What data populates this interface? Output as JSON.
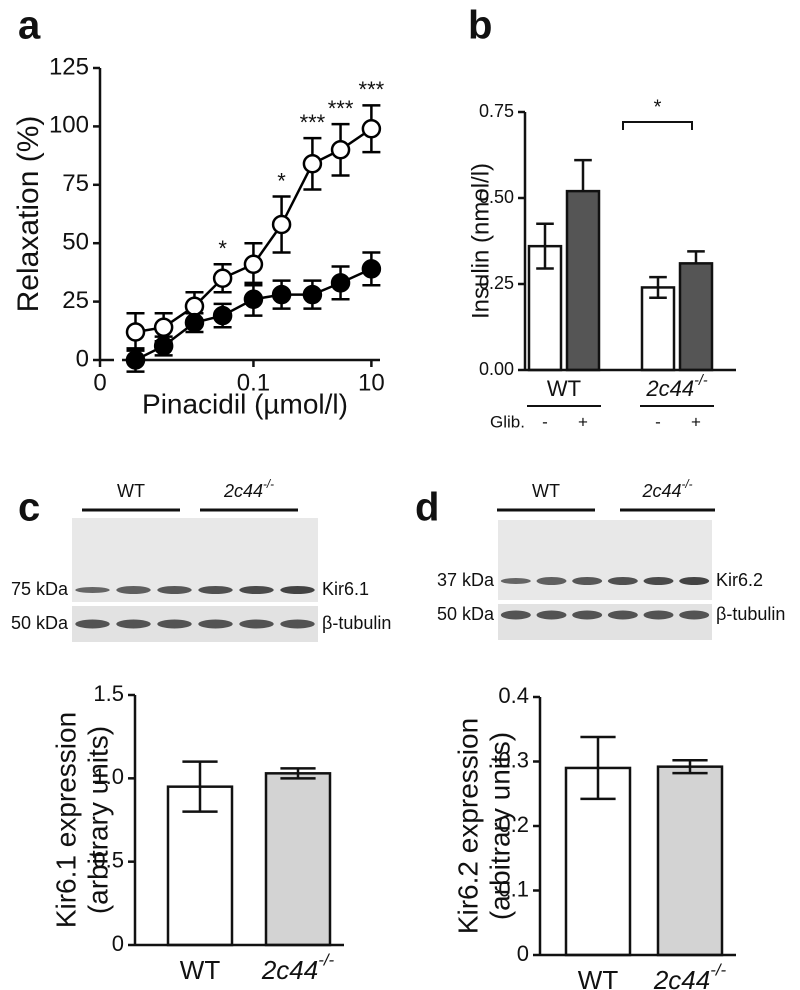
{
  "chart_data": [
    {
      "type": "line",
      "panel": "a",
      "xlabel": "Pinacidil (µmol/l)",
      "ylabel": "Relaxation (%)",
      "xlog": true,
      "x": [
        0.001,
        0.003,
        0.01,
        0.03,
        0.1,
        0.3,
        1,
        3,
        10
      ],
      "x_zero_label": "0",
      "xlim": [
        0.00025,
        14
      ],
      "xticks": [
        0.1,
        10
      ],
      "ylim": [
        0,
        125
      ],
      "yticks": [
        0,
        25,
        50,
        75,
        100,
        125
      ],
      "series": [
        {
          "marker": "open",
          "color": "#000000",
          "values": [
            12,
            14,
            23,
            35,
            41,
            58,
            84,
            90,
            99
          ],
          "errors": [
            8,
            6,
            6,
            6,
            9,
            12,
            11,
            11,
            10
          ]
        },
        {
          "marker": "filled",
          "color": "#000000",
          "values": [
            0,
            6,
            16,
            19,
            26,
            28,
            28,
            33,
            39
          ],
          "errors": [
            5,
            4,
            4,
            5,
            7,
            6,
            6,
            7,
            7
          ]
        }
      ],
      "annotations": [
        {
          "x": 0.03,
          "text": "*"
        },
        {
          "x": 0.3,
          "text": "*"
        },
        {
          "x": 1,
          "text": "***"
        },
        {
          "x": 3,
          "text": "***"
        },
        {
          "x": 10,
          "text": "***"
        }
      ]
    },
    {
      "type": "bar",
      "panel": "b",
      "ylabel": "Insulin (nmol/l)",
      "groups": [
        {
          "text": "WT"
        },
        {
          "text": "2c44",
          "sup": "-/-"
        }
      ],
      "condition_label": "Glib.",
      "categories": [
        "-",
        "+",
        "-",
        "+"
      ],
      "values": [
        0.36,
        0.52,
        0.24,
        0.31
      ],
      "errors": [
        0.065,
        0.09,
        0.03,
        0.035
      ],
      "colors": [
        "#ffffff",
        "#555555",
        "#ffffff",
        "#555555"
      ],
      "ylim": [
        0,
        0.75
      ],
      "yticks": [
        {
          "value": 0,
          "label": "0.00"
        },
        {
          "value": 0.25,
          "label": "0.25"
        },
        {
          "value": 0.5,
          "label": "0.50"
        },
        {
          "value": 0.75,
          "label": "0.75"
        }
      ],
      "significance": {
        "text": "*",
        "between": [
          1,
          3
        ]
      }
    },
    {
      "type": "bar",
      "panel": "c",
      "ylabel": [
        "Kir6.1 expression",
        "(arbitrary units)"
      ],
      "categories": [
        {
          "text": "WT"
        },
        {
          "text": "2c44",
          "sup": "-/-"
        }
      ],
      "values": [
        0.95,
        1.03
      ],
      "errors": [
        0.15,
        0.03
      ],
      "colors": [
        "#ffffff",
        "#d3d3d3"
      ],
      "ylim": [
        0,
        1.5
      ],
      "yticks": [
        0,
        0.5,
        {
          "value": 1,
          "label": "1.0"
        },
        1.5
      ],
      "blot": {
        "groups": [
          {
            "text": "WT"
          },
          {
            "text": "2c44",
            "sup": "-/-"
          }
        ],
        "rows": [
          {
            "marker": "75 kDa",
            "protein": "Kir6.1"
          },
          {
            "marker": "50 kDa",
            "protein": "β-tubulin"
          }
        ]
      }
    },
    {
      "type": "bar",
      "panel": "d",
      "ylabel": [
        "Kir6.2 expression",
        "(arbitrary units)"
      ],
      "categories": [
        {
          "text": "WT"
        },
        {
          "text": "2c44",
          "sup": "-/-"
        }
      ],
      "values": [
        0.29,
        0.292
      ],
      "errors": [
        0.048,
        0.01
      ],
      "colors": [
        "#ffffff",
        "#d3d3d3"
      ],
      "ylim": [
        0,
        0.4
      ],
      "yticks": [
        0,
        0.1,
        0.2,
        0.3,
        0.4
      ],
      "blot": {
        "groups": [
          {
            "text": "WT"
          },
          {
            "text": "2c44",
            "sup": "-/-"
          }
        ],
        "rows": [
          {
            "marker": "37 kDa",
            "protein": "Kir6.2"
          },
          {
            "marker": "50 kDa",
            "protein": "β-tubulin"
          }
        ]
      }
    }
  ]
}
